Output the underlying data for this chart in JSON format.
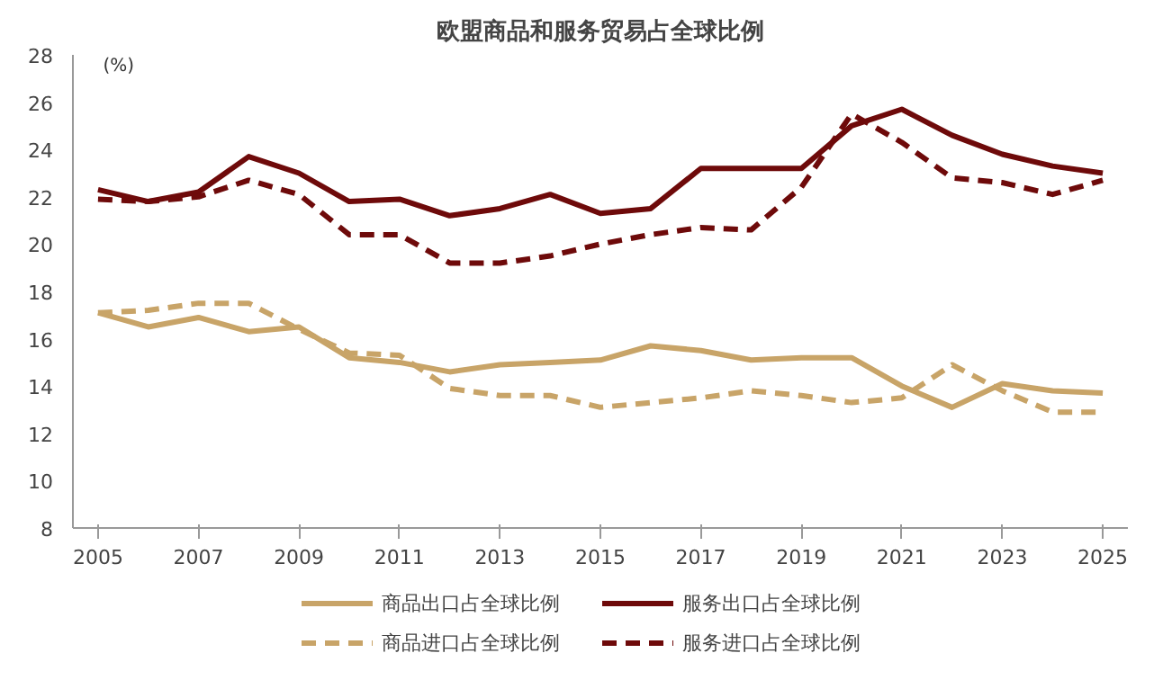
{
  "chart_data": {
    "type": "line",
    "title": "欧盟商品和服务贸易占全球比例",
    "ylabel": "(%)",
    "x": [
      2005,
      2006,
      2007,
      2008,
      2009,
      2010,
      2011,
      2012,
      2013,
      2014,
      2015,
      2016,
      2017,
      2018,
      2019,
      2020,
      2021,
      2022,
      2023,
      2024,
      2025
    ],
    "series": [
      {
        "name": "商品出口占全球比例",
        "color": "#c8a468",
        "line_style": "solid",
        "values": [
          17.1,
          16.5,
          16.9,
          16.3,
          16.5,
          15.2,
          15.0,
          14.6,
          14.9,
          15.0,
          15.1,
          15.7,
          15.5,
          15.1,
          15.2,
          15.2,
          14.0,
          13.1,
          14.1,
          13.8,
          13.7
        ]
      },
      {
        "name": "商品进口占全球比例",
        "color": "#c8a468",
        "line_style": "dashed",
        "values": [
          17.1,
          17.2,
          17.5,
          17.5,
          16.4,
          15.4,
          15.3,
          13.9,
          13.6,
          13.6,
          13.1,
          13.3,
          13.5,
          13.8,
          13.6,
          13.3,
          13.5,
          14.9,
          13.8,
          12.9,
          12.9
        ]
      },
      {
        "name": "服务出口占全球比例",
        "color": "#6e0a0a",
        "line_style": "solid",
        "values": [
          22.3,
          21.8,
          22.2,
          23.7,
          23.0,
          21.8,
          21.9,
          21.2,
          21.5,
          22.1,
          21.3,
          21.5,
          23.2,
          23.2,
          23.2,
          25.0,
          25.7,
          24.6,
          23.8,
          23.3,
          23.0
        ]
      },
      {
        "name": "服务进口占全球比例",
        "color": "#6e0a0a",
        "line_style": "dashed",
        "values": [
          21.9,
          21.8,
          22.0,
          22.7,
          22.1,
          20.4,
          20.4,
          19.2,
          19.2,
          19.5,
          20.0,
          20.4,
          20.7,
          20.6,
          22.4,
          25.5,
          24.3,
          22.8,
          22.6,
          22.1,
          22.7
        ]
      }
    ],
    "xlim": [
      2004.5,
      2025.5
    ],
    "xticks": [
      2005,
      2007,
      2009,
      2011,
      2013,
      2015,
      2017,
      2019,
      2021,
      2023,
      2025
    ],
    "ylim": [
      8,
      28
    ],
    "yticks": [
      8,
      10,
      12,
      14,
      16,
      18,
      20,
      22,
      24,
      26,
      28
    ],
    "grid": false,
    "legend": "bottom",
    "marker": "none"
  }
}
